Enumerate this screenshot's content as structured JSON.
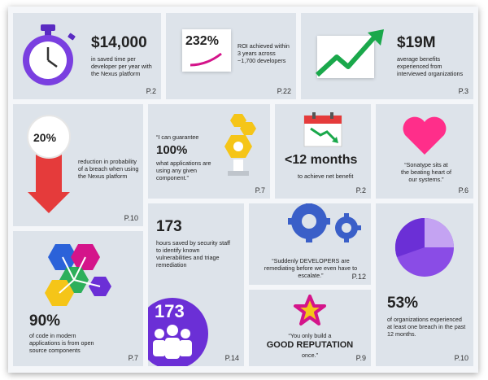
{
  "tiles": {
    "t1": {
      "value": "$14,000",
      "text": "in saved time per developer per year with the Nexus platform",
      "page": "P.2"
    },
    "t2": {
      "value": "232%",
      "text": "ROI achieved within 3 years across ~1,700 developers",
      "page": "P.22"
    },
    "t3": {
      "value": "$19M",
      "text": "average benefits experienced from interviewed organizations",
      "page": "P.3"
    },
    "t4": {
      "value": "20%",
      "text": "reduction in probability of a breach when using the Nexus platform",
      "page": "P.10"
    },
    "t5": {
      "quote_open": "“I can guarantee",
      "value": "100%",
      "text": "what applications are using any given component.”",
      "page": "P.7"
    },
    "t6": {
      "value": "<12 months",
      "text": "to achieve net benefit",
      "page": "P.2"
    },
    "t7": {
      "text": "“Sonatype sits at the beating heart of our systems.”",
      "page": "P.6"
    },
    "t8": {
      "value": "90%",
      "text": "of code in modern applications is from open source components",
      "page": "P.7"
    },
    "t9": {
      "value": "173",
      "text": "hours saved by security staff to identify known vulnerabilities and triage remediation",
      "badge": "173",
      "page": "P.14"
    },
    "t10": {
      "text": "“Suddenly DEVELOPERS are remediating before we even have to escalate.”",
      "page": "P.12"
    },
    "t11": {
      "line1": "“You only build a",
      "line2": "GOOD REPUTATION",
      "line3": "once.”",
      "page": "P.9"
    },
    "t12": {
      "value": "53%",
      "text": "of organizations experienced at least one breach in the past 12 months.",
      "page": "P.10"
    }
  },
  "icons": [
    "stopwatch-icon",
    "roi-arc-icon",
    "growth-arrow-icon",
    "percent-down-arrow-icon",
    "hexagon-components-icon",
    "calendar-icon",
    "heart-icon",
    "hexagon-cluster-icon",
    "people-icon",
    "gears-icon",
    "star-icon",
    "pie-icon"
  ],
  "colors": {
    "purple": "#6b2fd6",
    "magenta": "#d4148a",
    "green": "#1aa84b",
    "red": "#e53b3b",
    "yellow": "#f5c518",
    "blue": "#3a5fc8",
    "pink": "#ff2e8a"
  }
}
